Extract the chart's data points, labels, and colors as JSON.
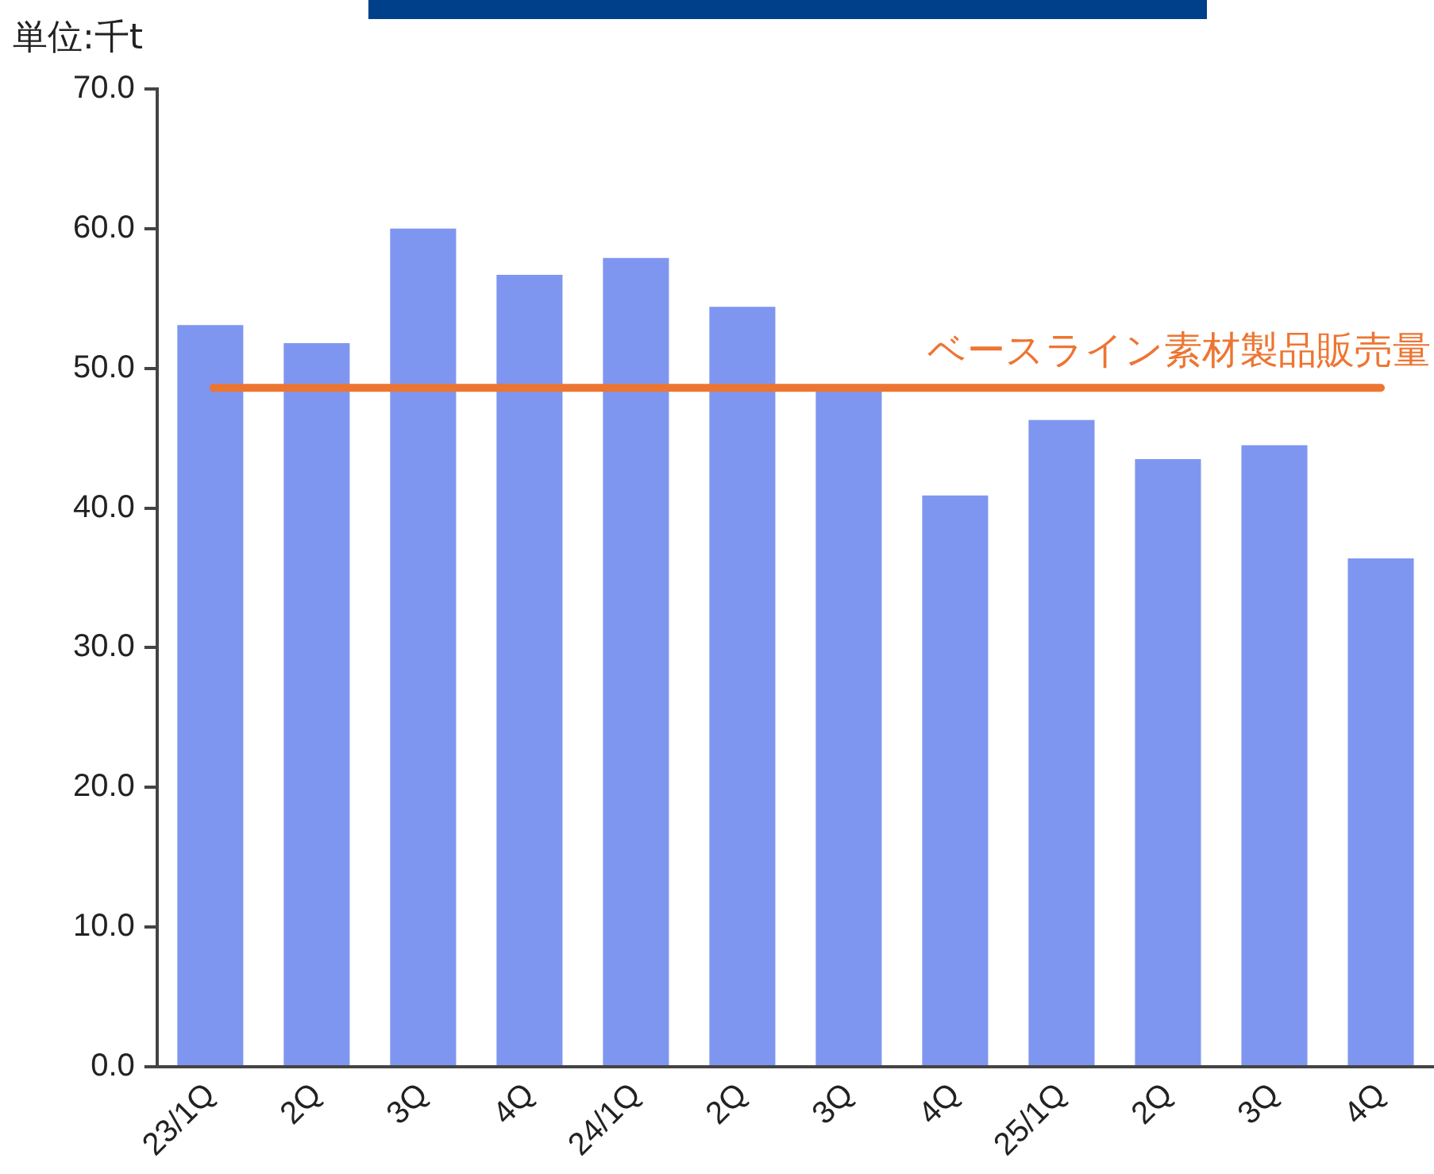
{
  "chart_data": {
    "type": "bar",
    "ylabel": "単位:千t",
    "categories": [
      "23/1Q",
      "2Q",
      "3Q",
      "4Q",
      "24/1Q",
      "2Q",
      "3Q",
      "4Q",
      "25/1Q",
      "2Q",
      "3Q",
      "4Q"
    ],
    "values": [
      53.1,
      51.8,
      60.0,
      56.7,
      57.9,
      54.4,
      48.5,
      40.9,
      46.3,
      43.5,
      44.5,
      36.4
    ],
    "color": "#7f96f0",
    "ylim": [
      0,
      70
    ],
    "yticks": [
      {
        "value": 0,
        "label": "0.0"
      },
      {
        "value": 10,
        "label": "10.0"
      },
      {
        "value": 20,
        "label": "20.0"
      },
      {
        "value": 30,
        "label": "30.0"
      },
      {
        "value": 40,
        "label": "40.0"
      },
      {
        "value": 50,
        "label": "50.0"
      },
      {
        "value": 60,
        "label": "60.0"
      },
      {
        "value": 70,
        "label": "70.0"
      }
    ],
    "grid": false,
    "legend": false,
    "ref_lines": [
      {
        "axis": "y",
        "value": 48.6,
        "label": "ベースライン素材製品販売量",
        "color": "#ed7532"
      }
    ]
  }
}
